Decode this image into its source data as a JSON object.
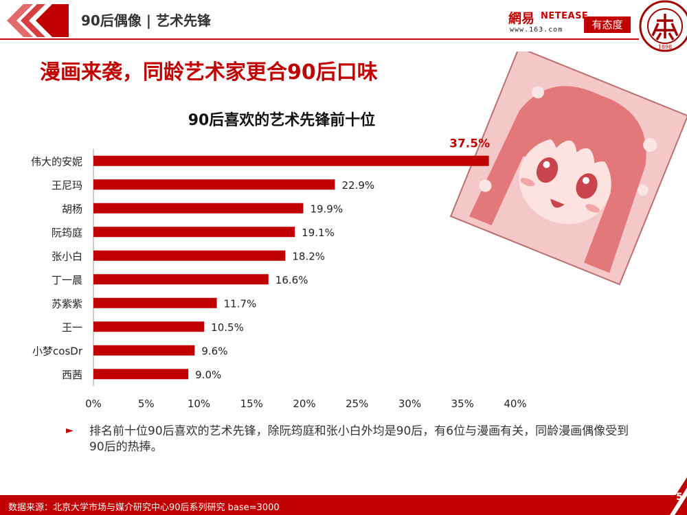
{
  "header": {
    "title": "90后偶像 | 艺术先锋"
  },
  "logos": {
    "netease_cn": "網易",
    "netease_en": "NETEASE",
    "netease_url": "www.163.com",
    "youtaidu": "有态度",
    "pku_year": "1898"
  },
  "slide": {
    "title": "漫画来袭，同龄艺术家更合90后口味",
    "bullet_text": "排名前十位90后喜欢的艺术先锋，除阮筠庭和张小白外均是90后，有6位与漫画有关，同龄漫画偶像受到90后的热捧。",
    "source": "数据来源：北京大学市场与媒介研究中心90后系列研究 base=3000",
    "page_number": "5"
  },
  "colors": {
    "accent": "#c00000",
    "bar": "#c00000",
    "illustration_bg": "#f4c8c8"
  },
  "chart_data": {
    "type": "bar",
    "orientation": "horizontal",
    "title": "90后喜欢的艺术先锋前十位",
    "categories": [
      "伟大的安妮",
      "王尼玛",
      "胡杨",
      "阮筠庭",
      "张小白",
      "丁一晨",
      "苏紫紫",
      "王一",
      "小梦cosDr",
      "西茜"
    ],
    "values": [
      37.5,
      22.9,
      19.9,
      19.1,
      18.2,
      16.6,
      11.7,
      10.5,
      9.6,
      9.0
    ],
    "value_labels": [
      "37.5%",
      "22.9%",
      "19.9%",
      "19.1%",
      "18.2%",
      "16.6%",
      "11.7%",
      "10.5%",
      "9.6%",
      "9.0%"
    ],
    "x_ticks": [
      "0%",
      "5%",
      "10%",
      "15%",
      "20%",
      "25%",
      "30%",
      "35%",
      "40%"
    ],
    "xlim": [
      0,
      40
    ],
    "grid": false
  }
}
